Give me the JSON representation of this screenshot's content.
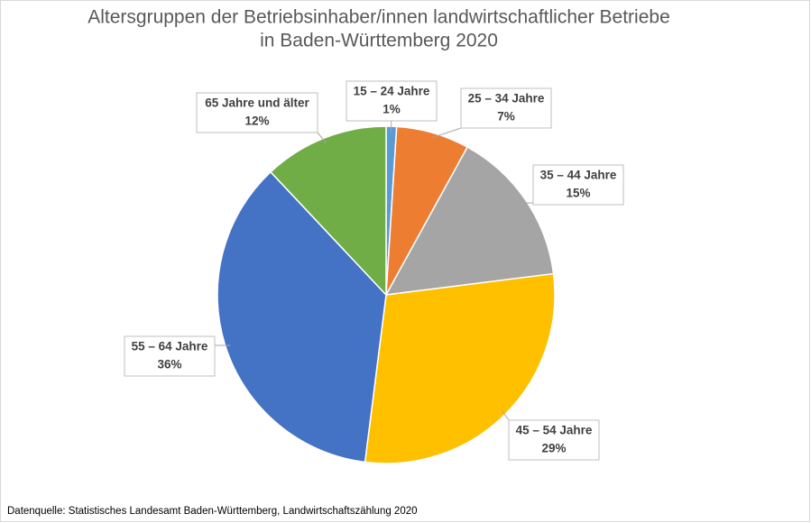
{
  "chart_data": {
    "type": "pie",
    "title": [
      "Altersgruppen der Betriebsinhaber/innen landwirtschaftlicher Betriebe",
      "in Baden-Württemberg 2020"
    ],
    "categories": [
      "15 – 24 Jahre",
      "25 – 34 Jahre",
      "35 – 44 Jahre",
      "45 – 54 Jahre",
      "55 – 64 Jahre",
      "65 Jahre und älter"
    ],
    "values": [
      1,
      7,
      15,
      29,
      36,
      12
    ],
    "value_labels": [
      "1%",
      "7%",
      "15%",
      "29%",
      "36%",
      "12%"
    ],
    "colors": [
      "#5b9bd5",
      "#ed7d31",
      "#a5a5a5",
      "#ffc000",
      "#4472c4",
      "#70ad47"
    ],
    "source": "Datenquelle: Statistisches Landesamt Baden-Württemberg, Landwirtschaftszählung 2020"
  }
}
